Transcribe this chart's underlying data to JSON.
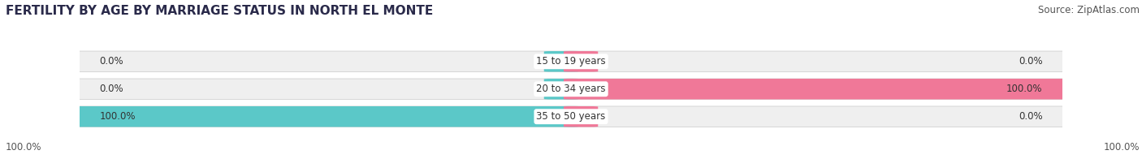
{
  "title": "FERTILITY BY AGE BY MARRIAGE STATUS IN NORTH EL MONTE",
  "source": "Source: ZipAtlas.com",
  "categories": [
    "15 to 19 years",
    "20 to 34 years",
    "35 to 50 years"
  ],
  "married_values": [
    0.0,
    0.0,
    100.0
  ],
  "unmarried_values": [
    0.0,
    100.0,
    0.0
  ],
  "married_color": "#5bc8c8",
  "unmarried_color": "#f07898",
  "bar_bg_color": "#efefef",
  "bar_border_color": "#d0d0d0",
  "title_fontsize": 11,
  "source_fontsize": 8.5,
  "label_fontsize": 8.5,
  "category_fontsize": 8.5,
  "legend_fontsize": 9,
  "axis_label_fontsize": 8.5,
  "left_axis_label": "100.0%",
  "right_axis_label": "100.0%",
  "background_color": "#ffffff",
  "min_stub": 0.04
}
